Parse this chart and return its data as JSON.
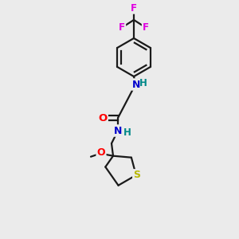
{
  "background_color": "#ebebeb",
  "bond_color": "#1a1a1a",
  "atom_colors": {
    "F": "#e000e0",
    "O": "#ff0000",
    "N": "#0000cc",
    "S": "#b8b800",
    "H": "#008888",
    "C": "#1a1a1a"
  },
  "figsize": [
    3.0,
    3.0
  ],
  "dpi": 100
}
